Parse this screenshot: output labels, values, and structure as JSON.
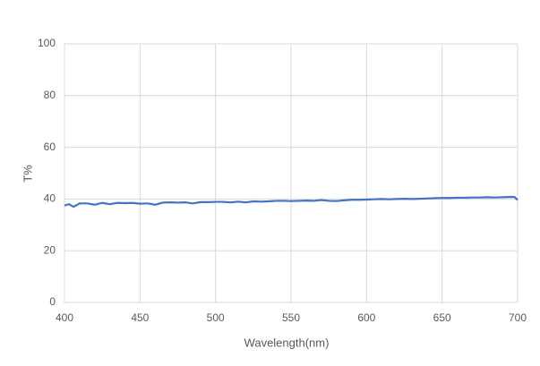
{
  "chart_data": {
    "type": "line",
    "x_label": "Wavelength(nm)",
    "y_label": "T%",
    "x": [
      400,
      403,
      406,
      410,
      415,
      420,
      425,
      430,
      435,
      440,
      445,
      450,
      455,
      460,
      465,
      470,
      475,
      480,
      485,
      490,
      495,
      500,
      505,
      510,
      515,
      520,
      525,
      530,
      535,
      540,
      545,
      550,
      555,
      560,
      565,
      570,
      575,
      580,
      585,
      590,
      595,
      600,
      605,
      610,
      615,
      620,
      625,
      630,
      635,
      640,
      645,
      650,
      655,
      660,
      665,
      670,
      675,
      680,
      685,
      690,
      695,
      698,
      700
    ],
    "series": [
      {
        "color": "#4472c4",
        "values": [
          37.5,
          38,
          37,
          38.3,
          38.3,
          37.8,
          38.5,
          38,
          38.5,
          38.4,
          38.5,
          38.2,
          38.3,
          37.8,
          38.6,
          38.7,
          38.6,
          38.7,
          38.3,
          38.8,
          38.8,
          38.9,
          38.9,
          38.7,
          39,
          38.7,
          39.1,
          39,
          39.1,
          39.3,
          39.3,
          39.2,
          39.3,
          39.4,
          39.3,
          39.6,
          39.3,
          39.2,
          39.5,
          39.7,
          39.7,
          39.8,
          39.9,
          40,
          39.9,
          40,
          40.1,
          40,
          40.1,
          40.2,
          40.3,
          40.4,
          40.4,
          40.5,
          40.5,
          40.6,
          40.6,
          40.7,
          40.6,
          40.7,
          40.8,
          40.8,
          39.6
        ]
      }
    ],
    "xlim": [
      400,
      700
    ],
    "xticks": [
      400,
      450,
      500,
      550,
      600,
      650,
      700
    ],
    "ylim": [
      0,
      100
    ],
    "yticks": [
      0,
      20,
      40,
      60,
      80,
      100
    ],
    "grid": true
  }
}
